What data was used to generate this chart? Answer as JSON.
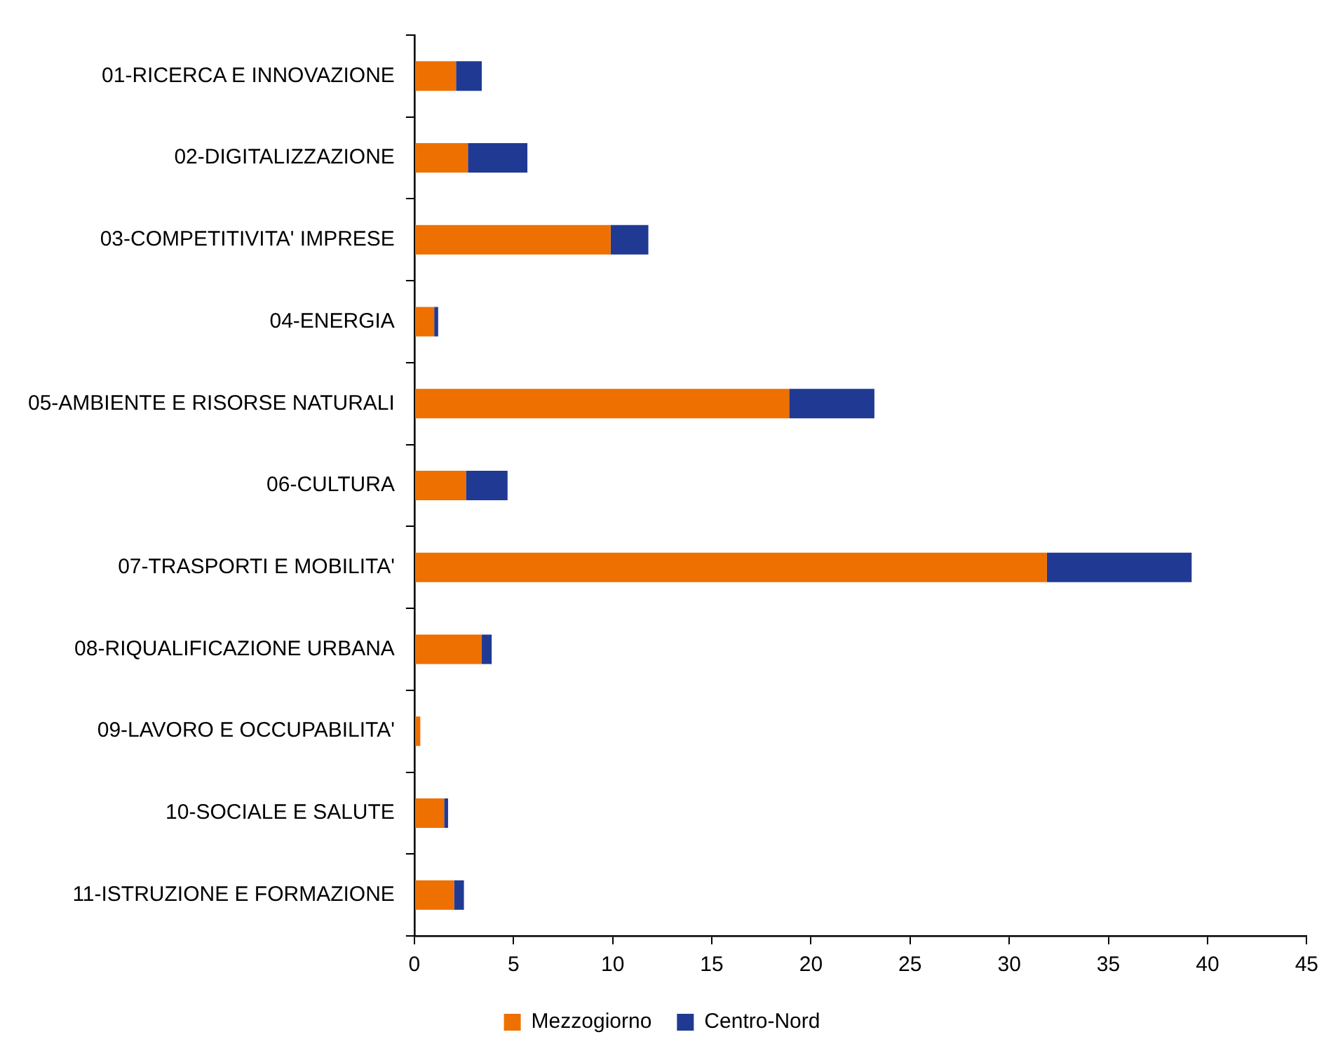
{
  "chart_data": {
    "type": "bar",
    "orientation": "horizontal",
    "stacked": true,
    "categories": [
      "01-RICERCA E INNOVAZIONE",
      "02-DIGITALIZZAZIONE",
      "03-COMPETITIVITA' IMPRESE",
      "04-ENERGIA",
      "05-AMBIENTE E RISORSE NATURALI",
      "06-CULTURA",
      "07-TRASPORTI E MOBILITA'",
      "08-RIQUALIFICAZIONE URBANA",
      "09-LAVORO E OCCUPABILITA'",
      "10-SOCIALE E SALUTE",
      "11-ISTRUZIONE E FORMAZIONE"
    ],
    "series": [
      {
        "name": "Mezzogiorno",
        "color": "#ed7000",
        "values": [
          2.1,
          2.7,
          9.9,
          1.0,
          18.9,
          2.6,
          31.9,
          3.4,
          0.3,
          1.5,
          2.0
        ]
      },
      {
        "name": "Centro-Nord",
        "color": "#203a93",
        "values": [
          1.3,
          3.0,
          1.9,
          0.2,
          4.3,
          2.1,
          7.3,
          0.5,
          0,
          0.2,
          0.5
        ]
      }
    ],
    "xlim": [
      0,
      45
    ],
    "xticks": [
      0,
      5,
      10,
      15,
      20,
      25,
      30,
      35,
      40,
      45
    ],
    "grid": false,
    "legend": "bottom"
  }
}
